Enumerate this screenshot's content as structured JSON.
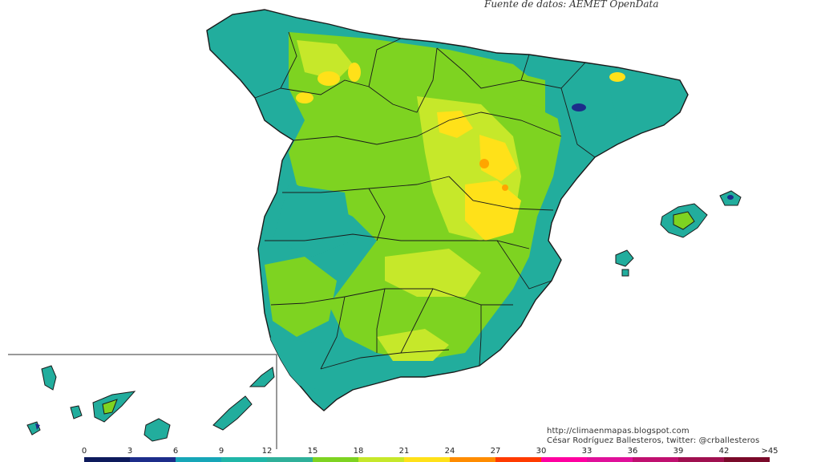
{
  "source_text": "Fuente de datos: AEMET OpenData",
  "credit_url": "http://climaenmapas.blogspot.com",
  "credit_author": "César Rodríguez Ballesteros, twitter: @crballesteros",
  "legend": {
    "ticks": [
      "0",
      "3",
      "6",
      "9",
      "12",
      "15",
      "18",
      "21",
      "24",
      "27",
      "30",
      "33",
      "36",
      "39",
      "42",
      ">45"
    ],
    "colors": [
      "#0d1a5c",
      "#1c2d8a",
      "#16a6b8",
      "#1fb6a8",
      "#2fb09a",
      "#7ed321",
      "#c6e82a",
      "#ffe119",
      "#ff8c00",
      "#ff3b00",
      "#ff00a0",
      "#e0109a",
      "#c01070",
      "#a01050",
      "#7a0a2a"
    ]
  },
  "palette": {
    "background": "#ffffff",
    "region_border": "#1a1a1a",
    "class_6_9": "#16a6b8",
    "class_9_12": "#24b09a",
    "class_12_15": "#7ed321",
    "class_15_18": "#c6e82a",
    "class_18_21": "#ffe119",
    "class_21_24": "#ffb000",
    "class_3_6": "#1c2d8a"
  }
}
